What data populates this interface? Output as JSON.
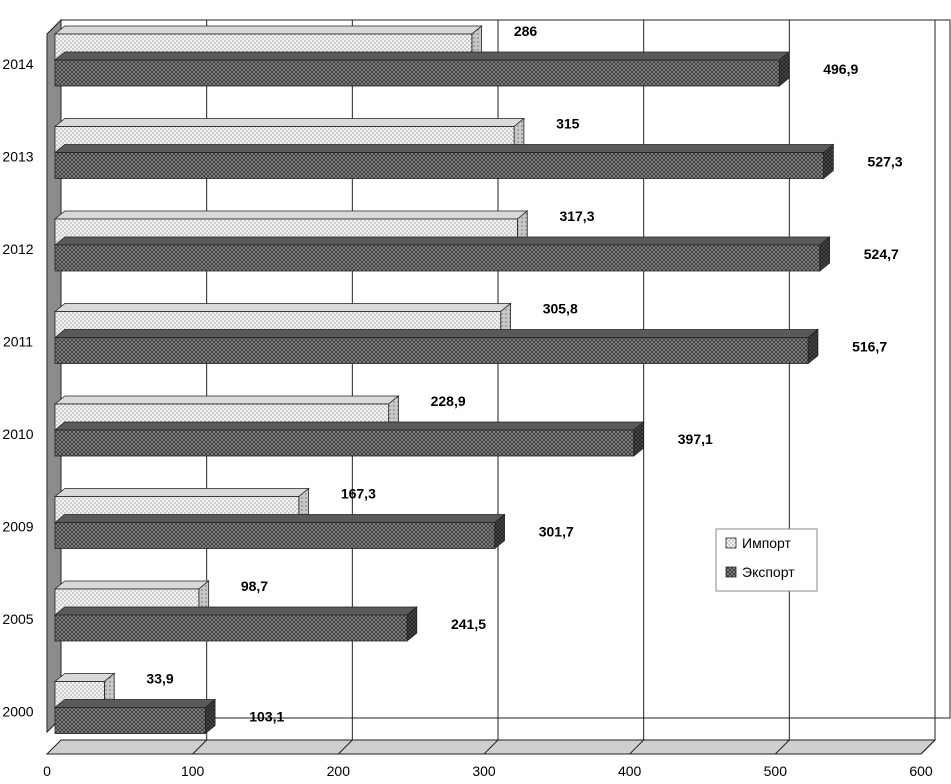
{
  "chart_data": {
    "type": "bar",
    "orientation": "horizontal",
    "three_d": true,
    "categories": [
      "2000",
      "2005",
      "2009",
      "2010",
      "2011",
      "2012",
      "2013",
      "2014"
    ],
    "series": [
      {
        "name": "Импорт",
        "values": [
          33.9,
          98.7,
          167.3,
          228.9,
          305.8,
          317.3,
          315,
          286
        ],
        "labels": [
          "33,9",
          "98,7",
          "167,3",
          "228,9",
          "305,8",
          "317,3",
          "315",
          "286"
        ],
        "color": "#e6e6e6"
      },
      {
        "name": "Экспорт",
        "values": [
          103.1,
          241.5,
          301.7,
          397.1,
          516.7,
          524.7,
          527.3,
          496.9
        ],
        "labels": [
          "103,1",
          "241,5",
          "301,7",
          "397,1",
          "516,7",
          "524,7",
          "527,3",
          "496,9"
        ],
        "color": "#7a7a7a"
      }
    ],
    "xlim": [
      0,
      600
    ],
    "x_ticks": [
      "0",
      "100",
      "200",
      "300",
      "400",
      "500",
      "600"
    ],
    "grid": true,
    "legend_position": "right"
  }
}
